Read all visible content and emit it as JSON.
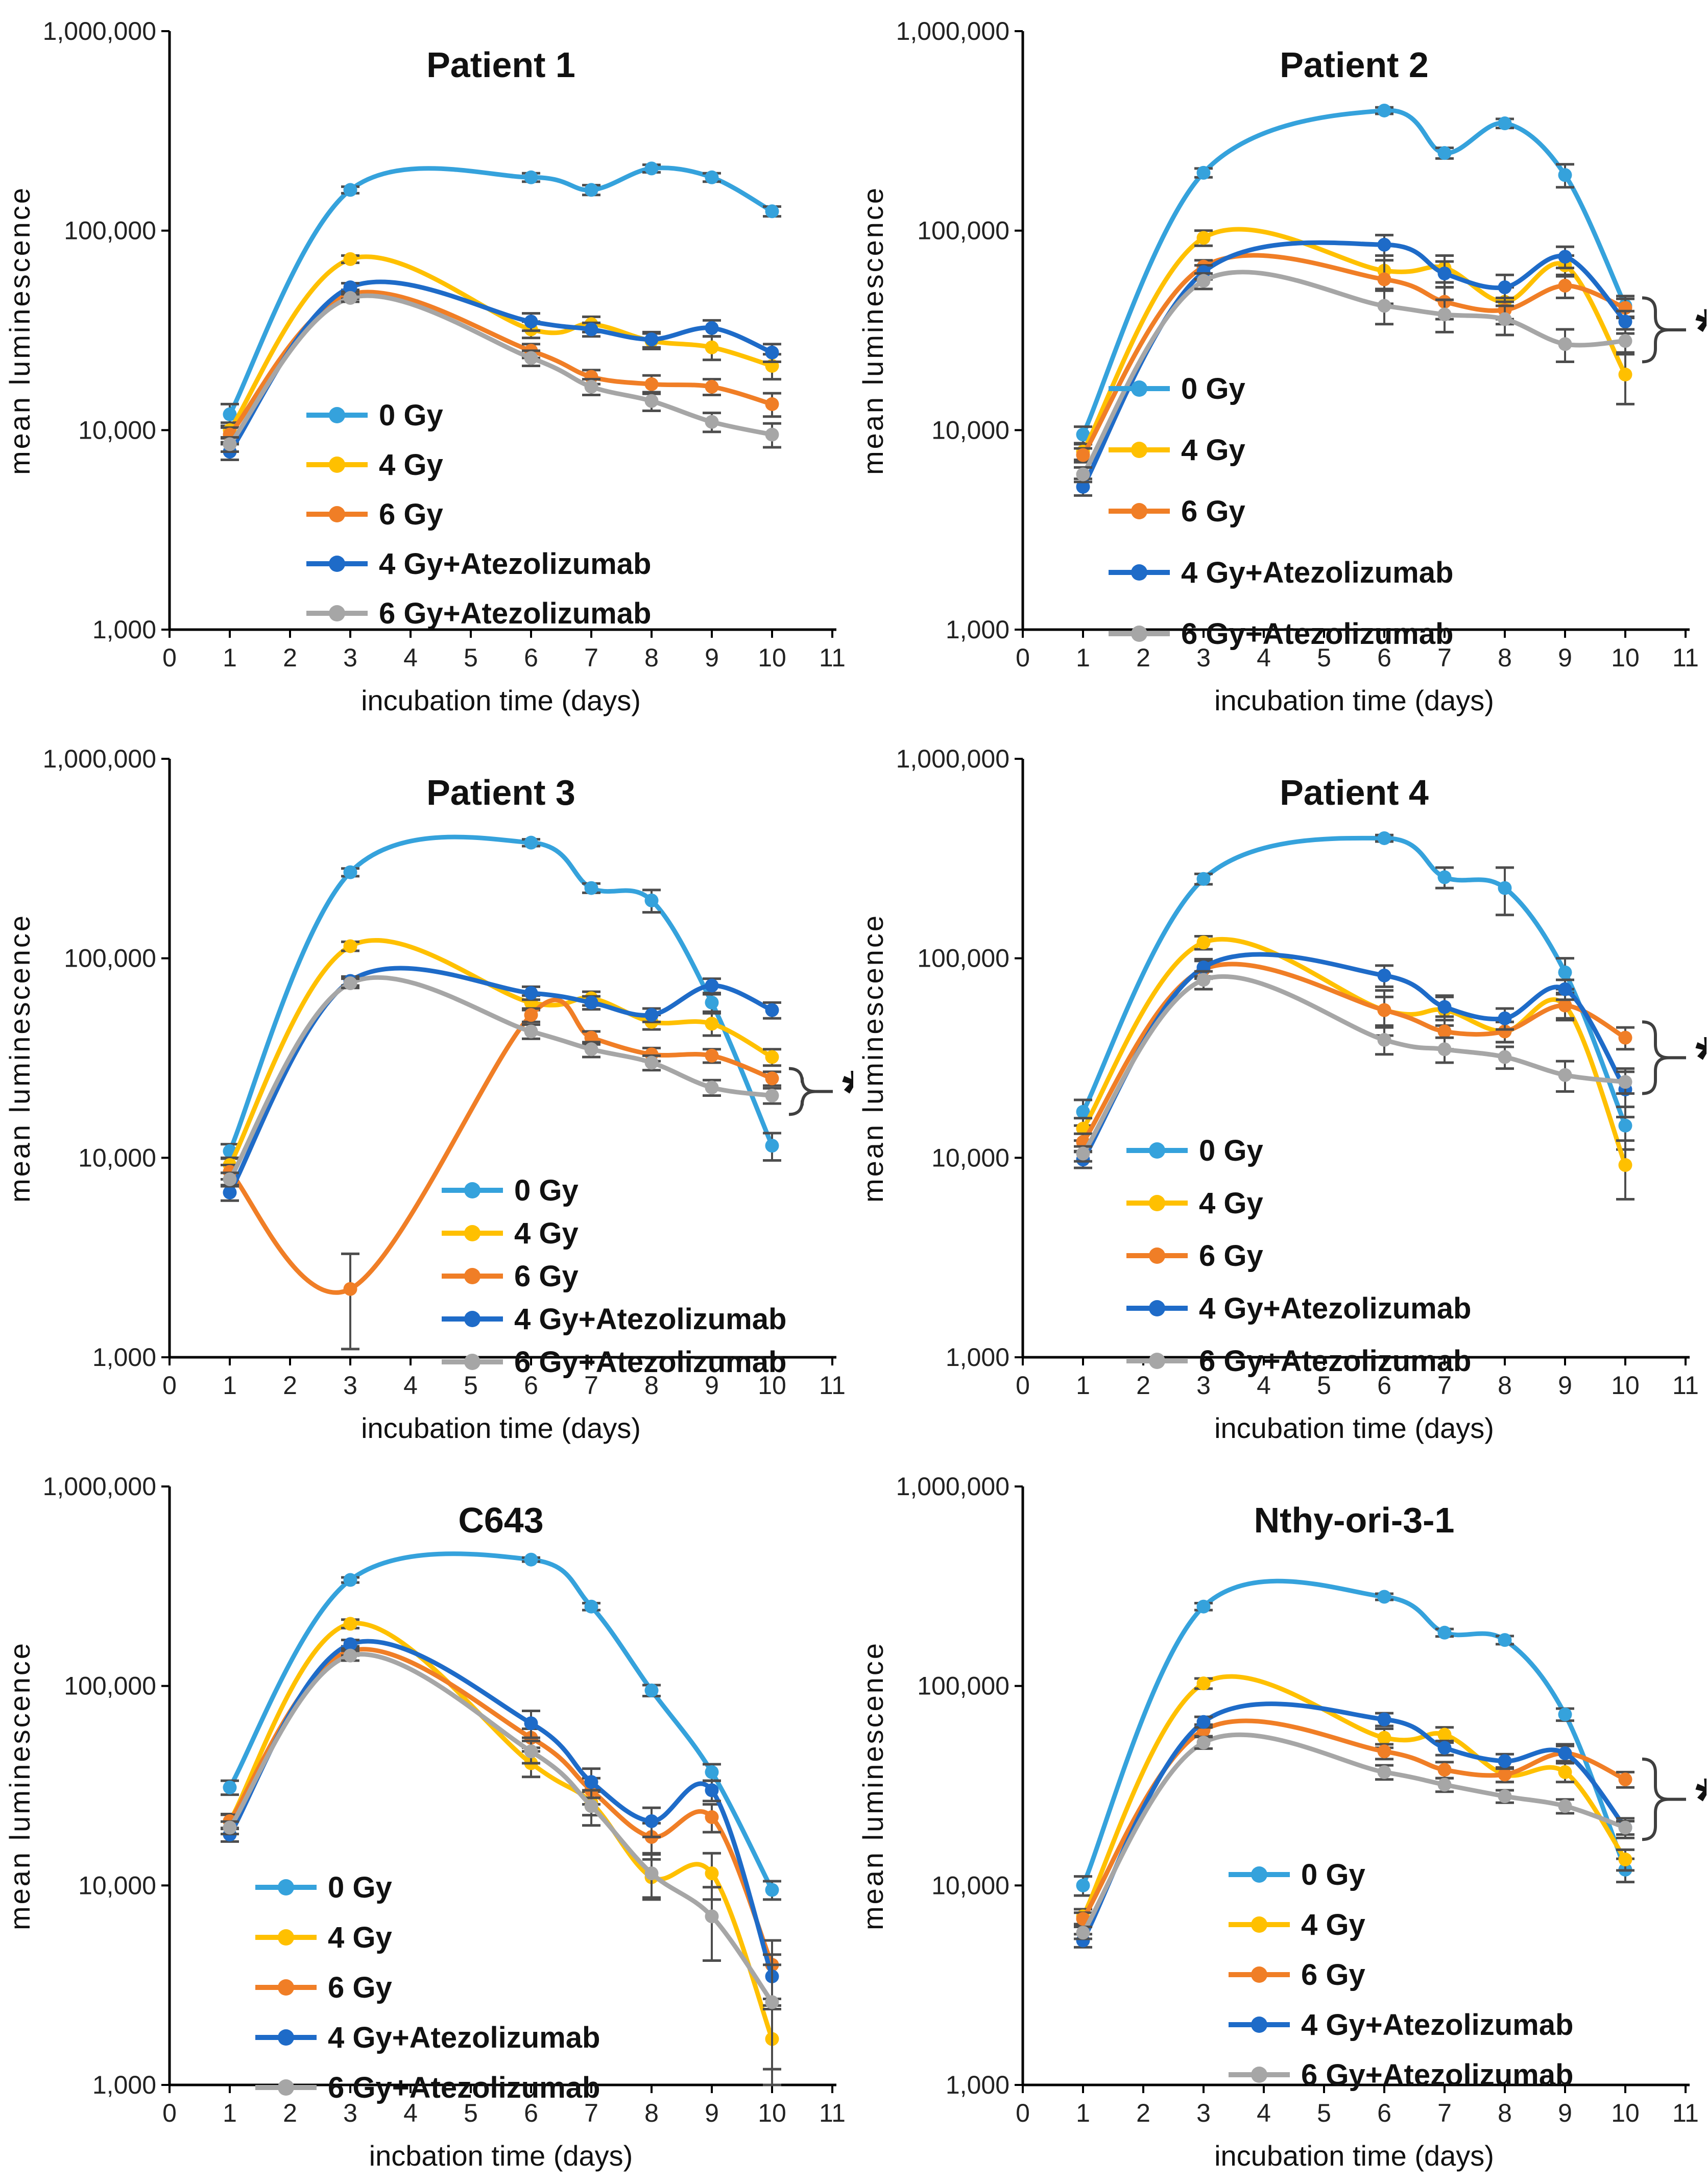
{
  "figure": {
    "y_axis_label": "mean luminescence",
    "y_tick_labels": [
      "1,000,000",
      "100,000",
      "10,000",
      "1,000"
    ],
    "x_tick_labels": [
      "0",
      "1",
      "2",
      "3",
      "4",
      "5",
      "6",
      "7",
      "8",
      "9",
      "10",
      "11"
    ],
    "series_colors": {
      "0 Gy": "#35A2DC",
      "4 Gy": "#FFC000",
      "6 Gy": "#F07E26",
      "4 Gy+Atezolizumab": "#1E6BC8",
      "6 Gy+Atezolizumab": "#A6A6A6"
    },
    "error_bar_color": "#4D4D4D",
    "axis_color": "#000000",
    "significance_label": "*"
  },
  "chart_data": [
    {
      "type": "line",
      "title": "Patient 1",
      "xlabel": "incubation time (days)",
      "ylabel": "mean luminescence",
      "yscale": "log",
      "ylim": [
        1000,
        1000000
      ],
      "xlim": [
        0,
        11
      ],
      "x": [
        1,
        3,
        6,
        7,
        8,
        9,
        10
      ],
      "grid": false,
      "legend_pos": "inside-center-left",
      "legend_xy": {
        "x": 600,
        "y": 812,
        "dy": 97
      },
      "significance": null,
      "series": [
        {
          "name": "0 Gy",
          "values": [
            12000,
            160000,
            185000,
            160000,
            205000,
            185000,
            125000
          ],
          "err": [
            1500,
            6000,
            9000,
            9000,
            9000,
            9000,
            7000
          ]
        },
        {
          "name": "4 Gy",
          "values": [
            10000,
            72000,
            32000,
            34000,
            28000,
            26000,
            21000
          ],
          "err": [
            900,
            3000,
            3000,
            3000,
            2500,
            3500,
            3000
          ]
        },
        {
          "name": "6 Gy",
          "values": [
            9500,
            48000,
            25000,
            18500,
            17000,
            16500,
            13500
          ],
          "err": [
            800,
            2500,
            2000,
            1500,
            1800,
            1500,
            1800
          ]
        },
        {
          "name": "4 Gy+Atezolizumab",
          "values": [
            7800,
            52000,
            35000,
            32000,
            28500,
            32500,
            24500
          ],
          "err": [
            700,
            2500,
            3500,
            2500,
            2500,
            3000,
            2500
          ]
        },
        {
          "name": "6 Gy+Atezolizumab",
          "values": [
            8500,
            46000,
            23000,
            16500,
            14000,
            11000,
            9500
          ],
          "err": [
            700,
            2000,
            2000,
            1500,
            1500,
            1200,
            1300
          ]
        }
      ]
    },
    {
      "type": "line",
      "title": "Patient 2",
      "xlabel": "incubation time (days)",
      "ylabel": "mean luminescence",
      "yscale": "log",
      "ylim": [
        1000,
        1000000
      ],
      "xlim": [
        0,
        11
      ],
      "x": [
        1,
        3,
        6,
        7,
        8,
        9,
        10
      ],
      "grid": false,
      "legend_pos": "inside-center-left",
      "legend_xy": {
        "x": 500,
        "y": 760,
        "dy": 120
      },
      "significance": {
        "label": "*",
        "y_top": 46000,
        "y_bottom": 22000
      },
      "series": [
        {
          "name": "0 Gy",
          "values": [
            9500,
            195000,
            400000,
            245000,
            345000,
            190000,
            42000
          ],
          "err": [
            900,
            10000,
            15000,
            15000,
            18000,
            25000,
            5000
          ]
        },
        {
          "name": "4 Gy",
          "values": [
            7800,
            92000,
            63000,
            65000,
            44000,
            67000,
            19000
          ],
          "err": [
            700,
            8000,
            12000,
            10000,
            8000,
            8000,
            5500
          ]
        },
        {
          "name": "6 Gy",
          "values": [
            7500,
            66000,
            57000,
            44000,
            40000,
            53000,
            41000
          ],
          "err": [
            600,
            5000,
            14000,
            8000,
            6000,
            7000,
            4500
          ]
        },
        {
          "name": "4 Gy+Atezolizumab",
          "values": [
            5200,
            62000,
            85000,
            61000,
            52000,
            74000,
            35000
          ],
          "err": [
            500,
            5000,
            10000,
            9000,
            8000,
            9000,
            4500
          ]
        },
        {
          "name": "6 Gy+Atezolizumab",
          "values": [
            6000,
            56000,
            42000,
            38000,
            36000,
            27000,
            28000
          ],
          "err": [
            500,
            5000,
            8000,
            7000,
            6000,
            5000,
            4000
          ]
        }
      ]
    },
    {
      "type": "line",
      "title": "Patient 3",
      "xlabel": "incubation time (days)",
      "ylabel": "mean luminescence",
      "yscale": "log",
      "ylim": [
        1000,
        1000000
      ],
      "xlim": [
        0,
        11
      ],
      "x": [
        1,
        3,
        6,
        7,
        8,
        9,
        10
      ],
      "grid": false,
      "legend_pos": "inside-lower-right",
      "legend_xy": {
        "x": 865,
        "y": 905,
        "dy": 84
      },
      "significance": {
        "label": "*",
        "y_top": 28000,
        "y_bottom": 16500
      },
      "series": [
        {
          "name": "0 Gy",
          "values": [
            10800,
            270000,
            380000,
            225000,
            195000,
            60000,
            11500
          ],
          "err": [
            900,
            12000,
            15000,
            12000,
            25000,
            6000,
            1800
          ]
        },
        {
          "name": "4 Gy",
          "values": [
            9200,
            115000,
            60000,
            63000,
            48000,
            47000,
            32000
          ],
          "err": [
            800,
            6000,
            5000,
            5000,
            4000,
            6000,
            3000
          ]
        },
        {
          "name": "6 Gy",
          "values": [
            8500,
            2200,
            52000,
            40000,
            33000,
            32500,
            25000
          ],
          "err": [
            700,
            1100,
            4000,
            3000,
            2500,
            2500,
            2000
          ]
        },
        {
          "name": "4 Gy+Atezolizumab",
          "values": [
            6700,
            77000,
            67000,
            60000,
            52000,
            73000,
            55000
          ],
          "err": [
            600,
            4000,
            5000,
            4500,
            4000,
            6000,
            5000
          ]
        },
        {
          "name": "6 Gy+Atezolizumab",
          "values": [
            7800,
            75000,
            43000,
            35000,
            30000,
            22500,
            20500
          ],
          "err": [
            600,
            4000,
            3500,
            3000,
            2500,
            2000,
            1800
          ]
        }
      ]
    },
    {
      "type": "line",
      "title": "Patient 4",
      "xlabel": "incubation time (days)",
      "ylabel": "mean luminescence",
      "yscale": "log",
      "ylim": [
        1000,
        1000000
      ],
      "xlim": [
        0,
        11
      ],
      "x": [
        1,
        3,
        6,
        7,
        8,
        9,
        10
      ],
      "grid": false,
      "legend_pos": "inside-center-left",
      "legend_xy": {
        "x": 535,
        "y": 827,
        "dy": 103
      },
      "significance": {
        "label": "*",
        "y_top": 48000,
        "y_bottom": 21000
      },
      "series": [
        {
          "name": "0 Gy",
          "values": [
            17000,
            250000,
            400000,
            255000,
            225000,
            85000,
            14500
          ],
          "err": [
            2500,
            15000,
            15000,
            30000,
            60000,
            15000,
            3500
          ]
        },
        {
          "name": "4 Gy",
          "values": [
            14000,
            120000,
            55000,
            55000,
            43000,
            58000,
            9200
          ],
          "err": [
            1800,
            9000,
            9000,
            9000,
            5000,
            9000,
            3000
          ]
        },
        {
          "name": "6 Gy",
          "values": [
            12000,
            88000,
            55000,
            43000,
            43000,
            58000,
            40000
          ],
          "err": [
            1200,
            9000,
            14000,
            8000,
            5000,
            8000,
            5000
          ]
        },
        {
          "name": "4 Gy+Atezolizumab",
          "values": [
            9800,
            90000,
            82000,
            57000,
            50000,
            70000,
            22000
          ],
          "err": [
            900,
            9000,
            10000,
            8000,
            6000,
            8000,
            6000
          ]
        },
        {
          "name": "6 Gy+Atezolizumab",
          "values": [
            10500,
            78000,
            39000,
            35000,
            32000,
            26000,
            24000
          ],
          "err": [
            900,
            8000,
            6000,
            5000,
            4000,
            4500,
            3000
          ]
        }
      ]
    },
    {
      "type": "line",
      "title": "C643",
      "xlabel": "incbation time (days)",
      "ylabel": "mean luminescence",
      "yscale": "log",
      "ylim": [
        1000,
        1000000
      ],
      "xlim": [
        0,
        11
      ],
      "x": [
        1,
        3,
        6,
        7,
        8,
        9,
        10
      ],
      "grid": false,
      "legend_pos": "inside-center-left",
      "legend_xy": {
        "x": 500,
        "y": 845,
        "dy": 98
      },
      "significance": null,
      "series": [
        {
          "name": "0 Gy",
          "values": [
            31000,
            340000,
            430000,
            250000,
            95000,
            37000,
            9500
          ],
          "err": [
            2500,
            10000,
            10000,
            10000,
            6000,
            3500,
            1000
          ]
        },
        {
          "name": "4 Gy",
          "values": [
            21000,
            205000,
            41000,
            26000,
            11000,
            11500,
            1700
          ],
          "err": [
            1800,
            10000,
            6000,
            3500,
            2500,
            3000,
            700
          ]
        },
        {
          "name": "6 Gy",
          "values": [
            21000,
            150000,
            55000,
            30000,
            17500,
            22000,
            4000
          ],
          "err": [
            1600,
            8000,
            6000,
            4500,
            3000,
            3500,
            1300
          ]
        },
        {
          "name": "4 Gy+Atezolizumab",
          "values": [
            18000,
            162000,
            65000,
            33000,
            21000,
            30000,
            3500
          ],
          "err": [
            1400,
            8000,
            10000,
            5500,
            3500,
            3500,
            1000
          ]
        },
        {
          "name": "6 Gy+Atezolizumab",
          "values": [
            19500,
            142000,
            47000,
            25000,
            11500,
            7000,
            2600
          ],
          "err": [
            1400,
            8000,
            6000,
            5000,
            2800,
            2800,
            1400
          ]
        }
      ]
    },
    {
      "type": "line",
      "title": "Nthy-ori-3-1",
      "xlabel": "incubation time (days)",
      "ylabel": "mean luminescence",
      "yscale": "log",
      "ylim": [
        1000,
        1000000
      ],
      "xlim": [
        0,
        11
      ],
      "x": [
        1,
        3,
        6,
        7,
        8,
        9,
        10
      ],
      "grid": false,
      "legend_pos": "inside-center",
      "legend_xy": {
        "x": 735,
        "y": 820,
        "dy": 98
      },
      "significance": {
        "label": "*",
        "y_top": 43000,
        "y_bottom": 17000
      },
      "series": [
        {
          "name": "0 Gy",
          "values": [
            10000,
            250000,
            280000,
            185000,
            170000,
            72000,
            12000
          ],
          "err": [
            1100,
            10000,
            10000,
            8000,
            8000,
            5000,
            1600
          ]
        },
        {
          "name": "4 Gy",
          "values": [
            7000,
            103000,
            55000,
            57000,
            36000,
            37000,
            13500
          ],
          "err": [
            600,
            6000,
            6000,
            5000,
            3000,
            4000,
            1600
          ]
        },
        {
          "name": "6 Gy",
          "values": [
            6800,
            60000,
            47000,
            38000,
            36000,
            46000,
            34000
          ],
          "err": [
            500,
            4000,
            4000,
            3500,
            3000,
            4000,
            3000
          ]
        },
        {
          "name": "4 Gy+Atezolizumab",
          "values": [
            5300,
            66000,
            68000,
            49000,
            42000,
            46000,
            19500
          ],
          "err": [
            400,
            4000,
            5000,
            4000,
            3500,
            5000,
            2200
          ]
        },
        {
          "name": "6 Gy+Atezolizumab",
          "values": [
            5800,
            52000,
            37000,
            32000,
            28000,
            25000,
            19500
          ],
          "err": [
            400,
            3500,
            3000,
            2500,
            2000,
            2000,
            1500
          ]
        }
      ]
    }
  ]
}
